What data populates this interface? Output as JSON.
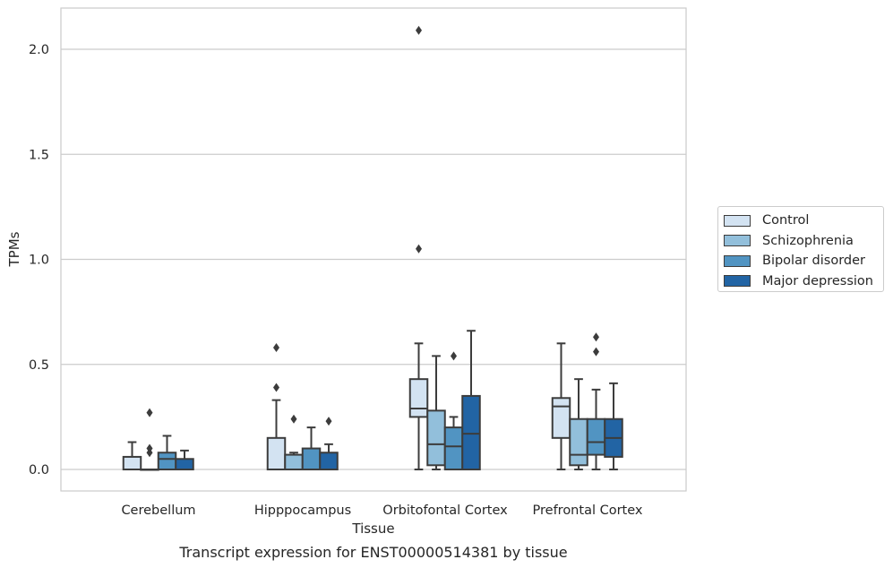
{
  "chart_data": {
    "type": "box",
    "title": "",
    "xlabel": "Tissue",
    "ylabel": "TPMs",
    "caption": "Transcript expression for ENST00000514381 by tissue",
    "ylim": [
      -0.1,
      2.2
    ],
    "yticks": [
      "0.0",
      "0.5",
      "1.0",
      "1.5",
      "2.0"
    ],
    "grid": true,
    "legend_position": "right",
    "categories": [
      "Cerebellum",
      "Hipppocampus",
      "Orbitofontal Cortex",
      "Prefrontal Cortex"
    ],
    "series": [
      {
        "name": "Control",
        "color": "#d3e3f2",
        "boxes": [
          {
            "whislo": 0.0,
            "q1": 0.0,
            "med": 0.0,
            "q3": 0.06,
            "whishi": 0.13,
            "fliers": []
          },
          {
            "whislo": 0.0,
            "q1": 0.0,
            "med": 0.0,
            "q3": 0.15,
            "whishi": 0.33,
            "fliers": [
              0.39,
              0.58
            ]
          },
          {
            "whislo": 0.0,
            "q1": 0.25,
            "med": 0.29,
            "q3": 0.43,
            "whishi": 0.6,
            "fliers": [
              1.05,
              2.09
            ]
          },
          {
            "whislo": 0.0,
            "q1": 0.15,
            "med": 0.3,
            "q3": 0.34,
            "whishi": 0.6,
            "fliers": []
          }
        ]
      },
      {
        "name": "Schizophrenia",
        "color": "#92bfdb",
        "boxes": [
          {
            "whislo": 0.0,
            "q1": 0.0,
            "med": 0.0,
            "q3": 0.0,
            "whishi": 0.0,
            "fliers": [
              0.08,
              0.1,
              0.27
            ]
          },
          {
            "whislo": 0.0,
            "q1": 0.0,
            "med": 0.0,
            "q3": 0.07,
            "whishi": 0.08,
            "fliers": [
              0.24
            ]
          },
          {
            "whislo": 0.0,
            "q1": 0.02,
            "med": 0.12,
            "q3": 0.28,
            "whishi": 0.54,
            "fliers": []
          },
          {
            "whislo": 0.0,
            "q1": 0.02,
            "med": 0.07,
            "q3": 0.24,
            "whishi": 0.43,
            "fliers": []
          }
        ]
      },
      {
        "name": "Bipolar disorder",
        "color": "#5194c2",
        "boxes": [
          {
            "whislo": 0.0,
            "q1": 0.0,
            "med": 0.05,
            "q3": 0.08,
            "whishi": 0.16,
            "fliers": []
          },
          {
            "whislo": 0.0,
            "q1": 0.0,
            "med": 0.0,
            "q3": 0.1,
            "whishi": 0.2,
            "fliers": []
          },
          {
            "whislo": 0.0,
            "q1": 0.0,
            "med": 0.11,
            "q3": 0.2,
            "whishi": 0.25,
            "fliers": [
              0.54
            ]
          },
          {
            "whislo": 0.0,
            "q1": 0.07,
            "med": 0.13,
            "q3": 0.24,
            "whishi": 0.38,
            "fliers": [
              0.56,
              0.63
            ]
          }
        ]
      },
      {
        "name": "Major depression",
        "color": "#2264a4",
        "boxes": [
          {
            "whislo": 0.0,
            "q1": 0.0,
            "med": 0.0,
            "q3": 0.05,
            "whishi": 0.09,
            "fliers": []
          },
          {
            "whislo": 0.0,
            "q1": 0.0,
            "med": 0.0,
            "q3": 0.08,
            "whishi": 0.12,
            "fliers": [
              0.23
            ]
          },
          {
            "whislo": 0.0,
            "q1": 0.0,
            "med": 0.17,
            "q3": 0.35,
            "whishi": 0.66,
            "fliers": []
          },
          {
            "whislo": 0.0,
            "q1": 0.06,
            "med": 0.15,
            "q3": 0.24,
            "whishi": 0.41,
            "fliers": []
          }
        ]
      }
    ]
  }
}
